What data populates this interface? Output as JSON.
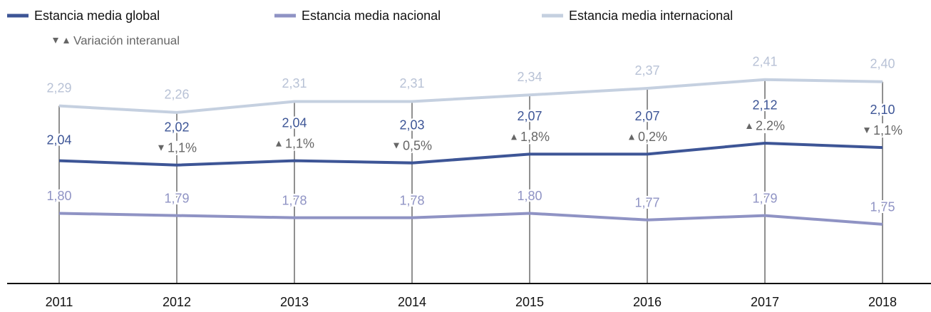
{
  "chart_data": {
    "type": "line",
    "categories": [
      "2011",
      "2012",
      "2013",
      "2014",
      "2015",
      "2016",
      "2017",
      "2018"
    ],
    "series": [
      {
        "name": "Estancia media global",
        "color": "#3d5596",
        "values": [
          2.04,
          2.02,
          2.04,
          2.03,
          2.07,
          2.07,
          2.12,
          2.1
        ],
        "value_labels": [
          "2,04",
          "2,02",
          "2,04",
          "2,03",
          "2,07",
          "2,07",
          "2,12",
          "2,10"
        ]
      },
      {
        "name": "Estancia media nacional",
        "color": "#8f93c4",
        "values": [
          1.8,
          1.79,
          1.78,
          1.78,
          1.8,
          1.77,
          1.79,
          1.75
        ],
        "value_labels": [
          "1,80",
          "1,79",
          "1,78",
          "1,78",
          "1,80",
          "1,77",
          "1,79",
          "1,75"
        ]
      },
      {
        "name": "Estancia media internacional",
        "color": "#c5d0e0",
        "values": [
          2.29,
          2.26,
          2.31,
          2.31,
          2.34,
          2.37,
          2.41,
          2.4
        ],
        "value_labels": [
          "2,29",
          "2,26",
          "2,31",
          "2,31",
          "2,34",
          "2,37",
          "2,41",
          "2,40"
        ]
      }
    ],
    "variation": {
      "name": "Variación interanual",
      "color": "#666666",
      "values": [
        null,
        -1.1,
        1.1,
        -0.5,
        1.8,
        0.2,
        2.2,
        -1.1
      ],
      "value_labels": [
        null,
        "1,1%",
        "1,1%",
        "0,5%",
        "1,8%",
        "0,2%",
        "2.2%",
        "1,1%"
      ]
    },
    "ylim": [
      1.48,
      2.5
    ]
  }
}
